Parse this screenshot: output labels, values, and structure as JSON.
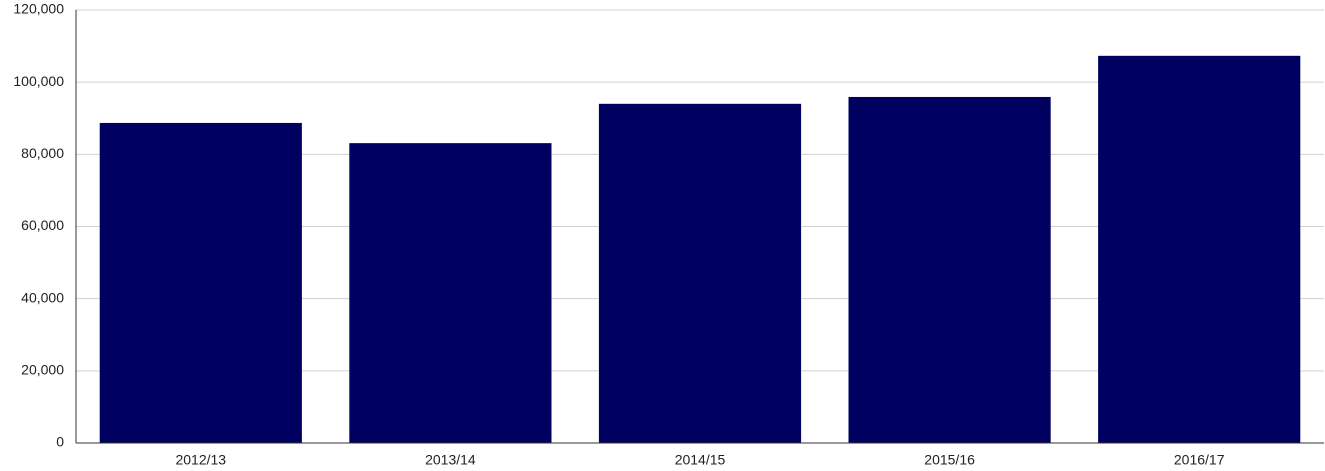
{
  "chart_data": {
    "type": "bar",
    "categories": [
      "2012/13",
      "2013/14",
      "2014/15",
      "2015/16",
      "2016/17"
    ],
    "values": [
      88700,
      83100,
      94000,
      95900,
      107300
    ],
    "color": "#000060",
    "ylim": [
      0,
      120000
    ],
    "yticks": [
      0,
      {
        "value": 20000,
        "label": "20,000"
      },
      {
        "value": 40000,
        "label": "40,000"
      },
      {
        "value": 60000,
        "label": "60,000"
      },
      {
        "value": 80000,
        "label": "80,000"
      },
      {
        "value": 100000,
        "label": "100,000"
      },
      {
        "value": 120000,
        "label": "120,000"
      }
    ],
    "grid": true
  }
}
